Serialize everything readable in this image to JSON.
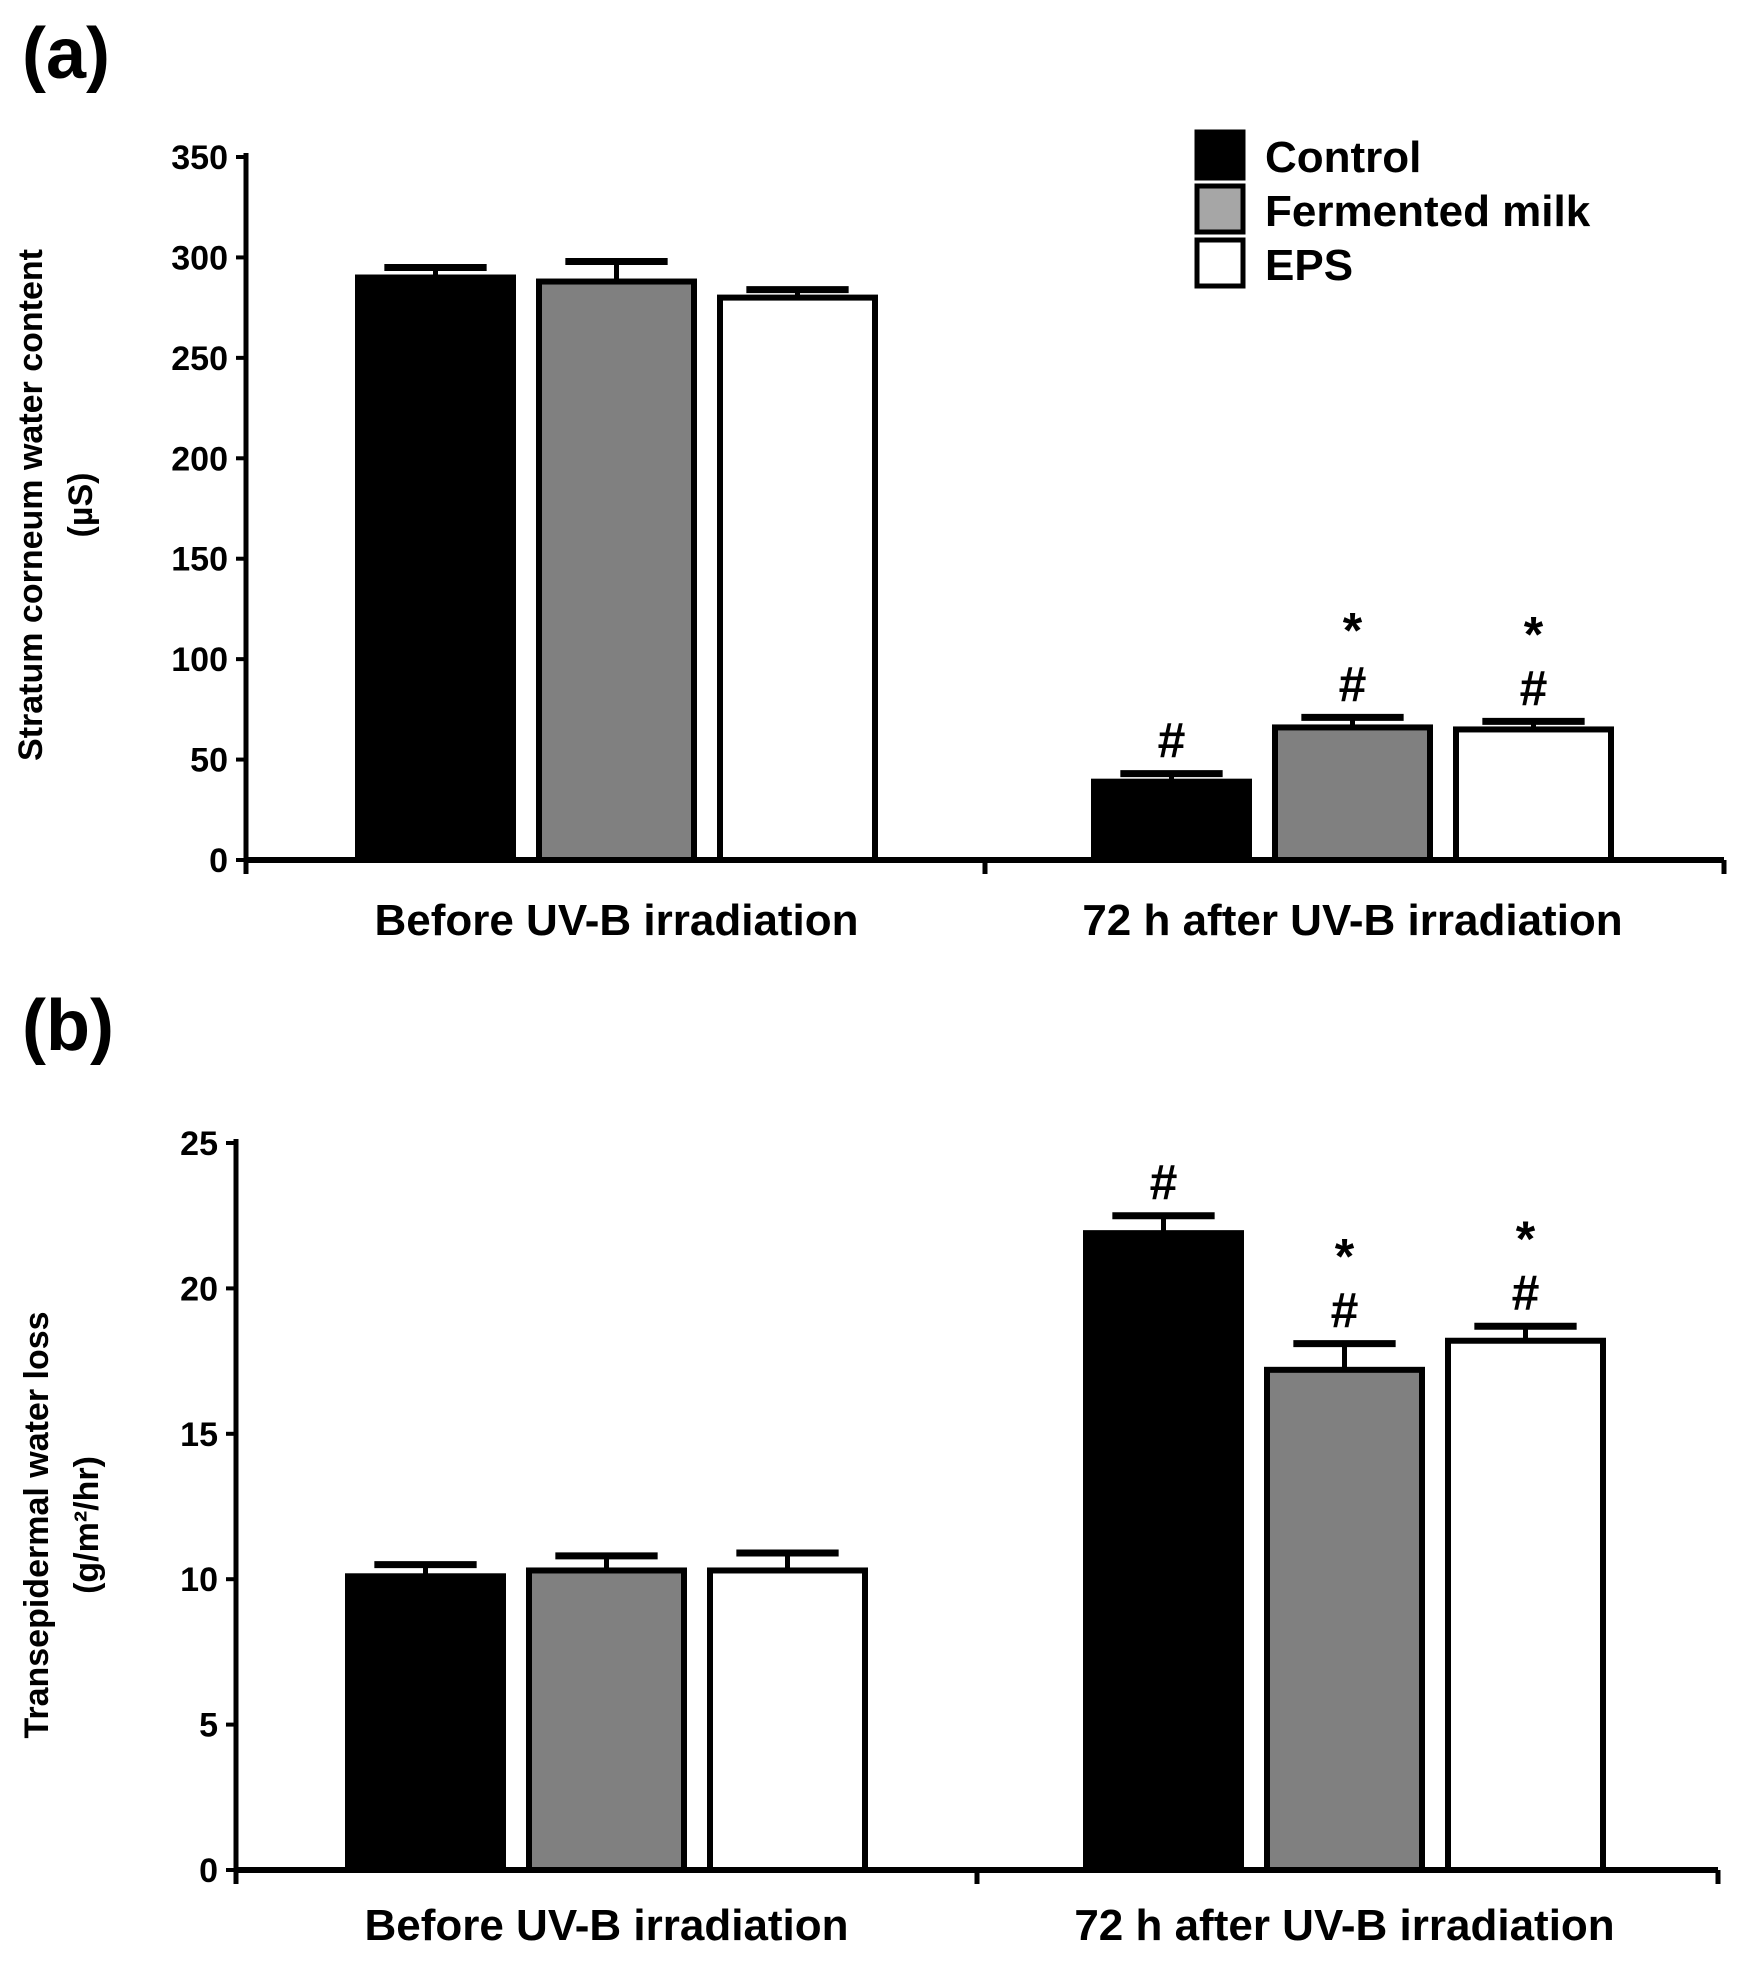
{
  "chart_data": [
    {
      "type": "bar",
      "panel_label": "(a)",
      "title": "",
      "xlabel": "",
      "ylabel": [
        "Stratum corneum water content",
        "(µS)"
      ],
      "ylim": [
        0,
        350
      ],
      "yticks": [
        0,
        50,
        100,
        150,
        200,
        250,
        300,
        350
      ],
      "categories": [
        "Before UV-B irradiation",
        "72 h after UV-B irradiation"
      ],
      "series": [
        {
          "name": "Control",
          "color": "#000000",
          "values": [
            290,
            39
          ],
          "errors": [
            5,
            4
          ],
          "annotations": [
            "",
            "#"
          ]
        },
        {
          "name": "Fermented milk",
          "color": "#808080",
          "values": [
            288,
            66
          ],
          "errors": [
            10,
            5
          ],
          "annotations": [
            "",
            "*\n#"
          ]
        },
        {
          "name": "EPS",
          "color": "#ffffff",
          "values": [
            280,
            65
          ],
          "errors": [
            4,
            4
          ],
          "annotations": [
            "",
            "*\n#"
          ]
        }
      ],
      "legend": {
        "placement": "top-right",
        "entries": [
          "Control",
          "Fermented milk",
          "EPS"
        ],
        "swatch_colors": [
          "#000000",
          "#a6a6a6",
          "#ffffff"
        ]
      },
      "grid": false
    },
    {
      "type": "bar",
      "panel_label": "(b)",
      "title": "",
      "xlabel": "",
      "ylabel": [
        "Transepidermal water loss",
        "(g/m²/hr)"
      ],
      "ylim": [
        0,
        25
      ],
      "yticks": [
        0,
        5,
        10,
        15,
        20,
        25
      ],
      "categories": [
        "Before UV-B irradiation",
        "72 h after UV-B irradiation"
      ],
      "series": [
        {
          "name": "Control",
          "color": "#000000",
          "values": [
            10.1,
            21.9
          ],
          "errors": [
            0.4,
            0.6
          ],
          "annotations": [
            "",
            "#"
          ]
        },
        {
          "name": "Fermented milk",
          "color": "#808080",
          "values": [
            10.3,
            17.2
          ],
          "errors": [
            0.5,
            0.9
          ],
          "annotations": [
            "",
            "*\n#"
          ]
        },
        {
          "name": "EPS",
          "color": "#ffffff",
          "values": [
            10.3,
            18.2
          ],
          "errors": [
            0.6,
            0.5
          ],
          "annotations": [
            "",
            "*\n#"
          ]
        }
      ],
      "grid": false
    }
  ]
}
